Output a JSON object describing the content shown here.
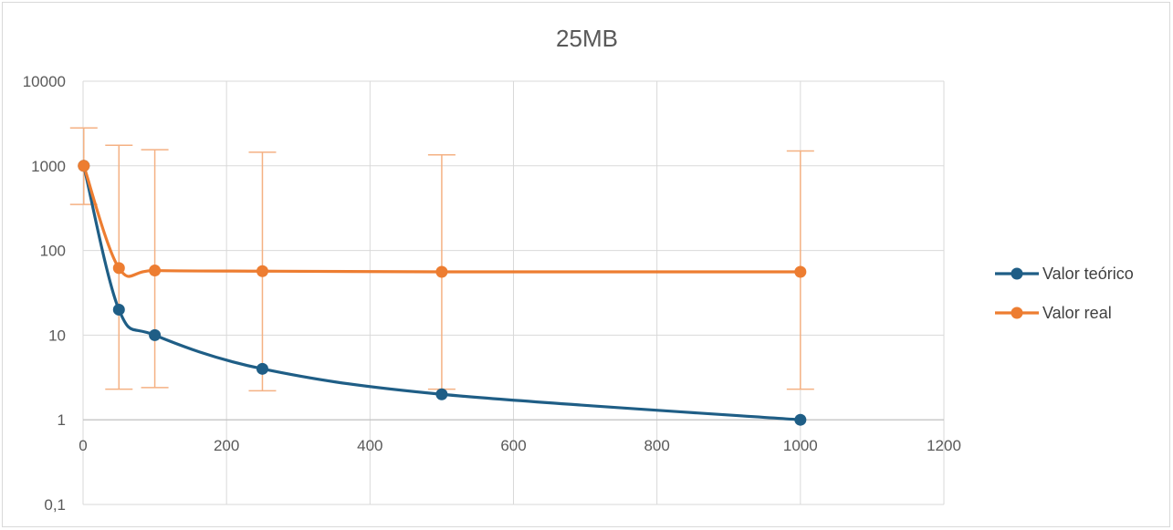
{
  "chart_data": {
    "type": "scatter",
    "title": "25MB",
    "xlabel": "",
    "ylabel": "",
    "xlim": [
      0,
      1200
    ],
    "ylim": [
      0.1,
      10000
    ],
    "yscale": "log",
    "x_ticks": [
      0,
      200,
      400,
      600,
      800,
      1000,
      1200
    ],
    "x_tick_labels": [
      "0",
      "200",
      "400",
      "600",
      "800",
      "1000",
      "1200"
    ],
    "y_ticks": [
      0.1,
      1,
      10,
      100,
      1000,
      10000
    ],
    "y_tick_labels": [
      "0,1",
      "1",
      "10",
      "100",
      "1000",
      "10000"
    ],
    "grid": true,
    "smooth": true,
    "legend_position": "right",
    "series": [
      {
        "name": "Valor teórico",
        "color": "#1f5e86",
        "x": [
          1,
          50,
          100,
          250,
          500,
          1000
        ],
        "y": [
          1000,
          20,
          10,
          4,
          2,
          1
        ]
      },
      {
        "name": "Valor real",
        "color": "#ed7d31",
        "error_color": "#f4b183",
        "x": [
          1,
          50,
          100,
          250,
          500,
          1000
        ],
        "y": [
          1000,
          62,
          58,
          57,
          56,
          56
        ],
        "error_low": [
          350,
          2.3,
          2.4,
          2.2,
          2.3,
          2.3
        ],
        "error_high": [
          2800,
          1750,
          1550,
          1450,
          1350,
          1500
        ]
      }
    ]
  }
}
